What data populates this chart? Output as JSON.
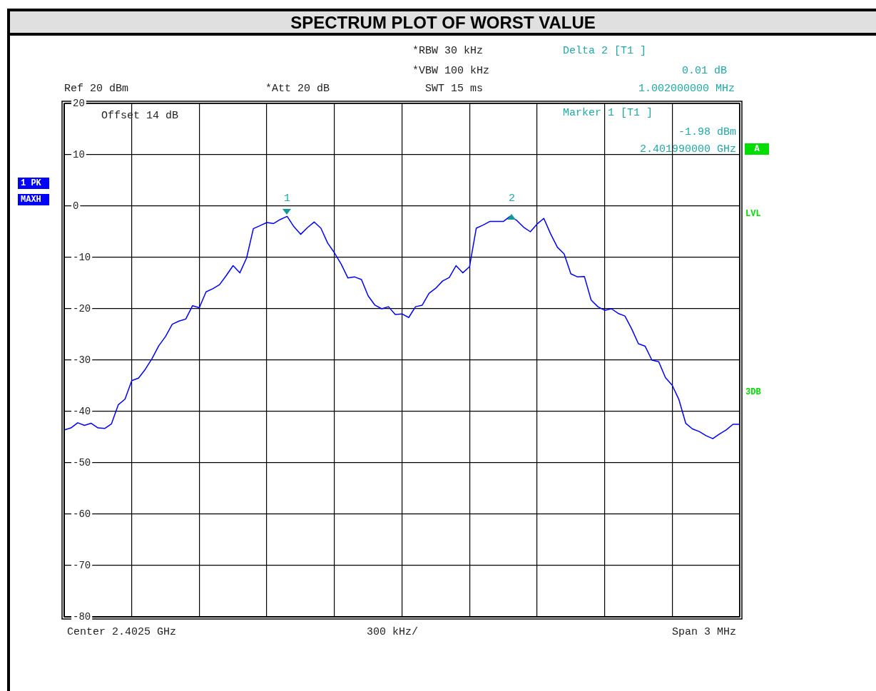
{
  "chart_data": {
    "type": "line",
    "title": "SPECTRUM PLOT OF WORST VALUE",
    "categories": [
      null,
      null,
      null,
      null,
      null,
      null,
      null,
      null,
      null,
      null,
      null,
      null,
      null,
      null,
      null,
      null,
      null,
      null,
      null,
      null,
      null,
      null,
      null,
      null,
      null,
      null,
      null,
      null,
      null,
      null,
      null,
      null,
      null,
      null,
      null,
      null,
      null,
      null,
      null,
      null,
      null,
      null,
      null,
      null,
      null,
      null,
      null,
      null,
      null,
      null,
      null,
      null,
      null,
      null,
      null,
      null,
      null,
      null,
      null,
      null,
      null,
      null,
      null,
      null,
      null,
      null,
      null,
      null,
      null,
      null,
      null,
      null,
      null,
      null,
      null,
      null,
      null,
      null,
      null,
      null,
      null,
      null,
      null,
      null,
      null,
      null,
      null,
      null,
      null,
      null,
      null,
      null,
      null,
      null,
      null,
      null,
      null,
      null,
      null,
      null,
      null
    ],
    "series": [
      {
        "color": "#0000ff",
        "values": [
          -43.6,
          -43.2,
          -42.2,
          -42.7,
          -42.3,
          -43.2,
          -43.3,
          -42.4,
          -38.7,
          -37.6,
          -34.0,
          -33.5,
          -31.8,
          -29.7,
          -27.2,
          -25.4,
          -23.0,
          -22.4,
          -22.0,
          -19.4,
          -19.8,
          -16.7,
          -16.1,
          -15.3,
          -13.5,
          -11.6,
          -13.0,
          -10.1,
          -4.4,
          -3.8,
          -3.2,
          -3.4,
          -2.6,
          -2.0,
          -4.0,
          -5.5,
          -4.2,
          -3.1,
          -4.3,
          -7.2,
          -9.1,
          -11.3,
          -14.0,
          -13.8,
          -14.3,
          -17.5,
          -19.3,
          -20.0,
          -19.6,
          -21.1,
          -21.0,
          -21.7,
          -19.6,
          -19.3,
          -17.0,
          -16.0,
          -14.6,
          -13.9,
          -11.6,
          -13.0,
          -11.8,
          -4.3,
          -3.7,
          -3.0,
          -3.0,
          -3.0,
          -2.0,
          -2.8,
          -4.1,
          -5.0,
          -3.5,
          -2.4,
          -5.4,
          -8.0,
          -9.3,
          -13.2,
          -13.8,
          -13.7,
          -18.3,
          -19.6,
          -20.3,
          -20.0,
          -20.9,
          -21.4,
          -23.9,
          -26.8,
          -27.3,
          -30.0,
          -30.3,
          -33.4,
          -34.9,
          -37.7,
          -42.3,
          -43.4,
          -43.9,
          -44.7,
          -45.3,
          -44.4,
          -43.6,
          -42.5,
          -42.5
        ]
      }
    ],
    "ylim": [
      -80,
      20
    ],
    "yticks": [
      -80,
      -70,
      -60,
      -50,
      -40,
      -30,
      -20,
      -10,
      0,
      10,
      20
    ],
    "tick_labels": "y",
    "grid": true,
    "marker": "none",
    "line_style": "solid",
    "annotations": [
      "Ref 20 dBm",
      "*Att 20 dB",
      "*RBW 30 kHz",
      "*VBW 100 kHz",
      "SWT 15 ms",
      "Delta 2 [T1 ]",
      "0.01 dB",
      "1.002000000 MHz",
      "Marker 1 [T1 ]",
      "-1.98 dBm",
      "2.401990000 GHz",
      "Offset 14 dB",
      "1 PK",
      "MAXH",
      "A",
      "LVL",
      "3DB",
      "Center 2.4025 GHz",
      "300 kHz/",
      "Span 3 MHz",
      "1",
      "2"
    ]
  }
}
